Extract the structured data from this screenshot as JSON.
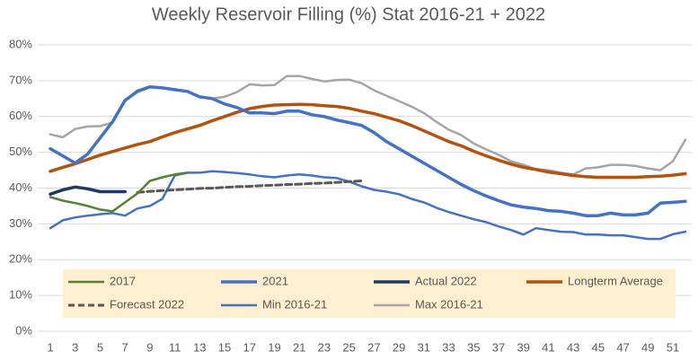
{
  "chart_data": {
    "type": "line",
    "title": "Weekly Reservoir Filling (%) Stat 2016-21 + 2022",
    "categories": [
      1,
      null,
      3,
      null,
      5,
      null,
      7,
      null,
      9,
      null,
      11,
      null,
      13,
      null,
      15,
      null,
      17,
      null,
      19,
      null,
      21,
      null,
      23,
      null,
      25,
      null,
      27,
      null,
      29,
      null,
      31,
      null,
      33,
      null,
      35,
      null,
      37,
      null,
      39,
      null,
      41,
      null,
      43,
      null,
      45,
      null,
      47,
      null,
      49,
      null,
      51,
      null
    ],
    "ylim": [
      0,
      80
    ],
    "yticks": [
      {
        "value": 0,
        "label": "0%"
      },
      {
        "value": 10,
        "label": "10%"
      },
      {
        "value": 20,
        "label": "20%"
      },
      {
        "value": 30,
        "label": "30%"
      },
      {
        "value": 40,
        "label": "40%"
      },
      {
        "value": 50,
        "label": "50%"
      },
      {
        "value": 60,
        "label": "60%"
      },
      {
        "value": 70,
        "label": "70%"
      },
      {
        "value": 80,
        "label": "80%"
      }
    ],
    "grid": true,
    "legend": "bottom",
    "series": [
      {
        "name": "2017",
        "color": "#548235",
        "values": [
          37.5,
          36.5,
          35.8,
          35,
          34,
          33.5,
          36,
          38.5,
          42,
          43,
          43.8,
          44.3,
          null,
          null,
          null,
          null,
          null,
          null,
          null,
          null,
          null,
          null,
          null,
          null,
          null,
          null,
          null,
          null,
          null,
          null,
          null,
          null,
          null,
          null,
          null,
          null,
          null,
          null,
          null,
          null,
          null,
          null,
          null,
          null,
          null,
          null,
          null,
          null,
          null,
          null,
          null,
          null
        ]
      },
      {
        "name": "2021",
        "color": "#4472c4",
        "values": [
          51,
          49,
          47,
          49.5,
          54,
          58.5,
          64.5,
          67,
          68.3,
          68,
          67.5,
          67,
          65.5,
          65,
          63.5,
          62.5,
          61,
          61,
          60.8,
          61.5,
          61.5,
          60.5,
          60,
          59,
          58.3,
          57.5,
          55.5,
          53,
          51,
          49,
          47,
          45,
          43,
          41,
          39.3,
          37.8,
          36.5,
          35.3,
          34.7,
          34.3,
          33.7,
          33.5,
          33,
          32.3,
          32.3,
          33,
          32.5,
          32.5,
          33,
          35.8,
          36,
          36.3
        ]
      },
      {
        "name": "Actual 2022",
        "color": "#1f3864",
        "values": [
          38.3,
          39.5,
          40.3,
          39.8,
          39,
          39,
          39,
          null,
          null,
          null,
          null,
          null,
          null,
          null,
          null,
          null,
          null,
          null,
          null,
          null,
          null,
          null,
          null,
          null,
          null,
          null,
          null,
          null,
          null,
          null,
          null,
          null,
          null,
          null,
          null,
          null,
          null,
          null,
          null,
          null,
          null,
          null,
          null,
          null,
          null,
          null,
          null,
          null,
          null,
          null,
          null,
          null
        ]
      },
      {
        "name": "Longterm Average",
        "color": "#b4520f",
        "values": [
          44.7,
          45.8,
          46.8,
          48,
          49.2,
          50.2,
          51.2,
          52.2,
          53,
          54.3,
          55.5,
          56.5,
          57.5,
          58.8,
          60,
          61.2,
          62.2,
          62.8,
          63.2,
          63.3,
          63.4,
          63.3,
          63,
          62.8,
          62.3,
          61.5,
          60.8,
          59.8,
          58.8,
          57.5,
          56,
          54.5,
          53,
          51.8,
          50.3,
          49,
          47.8,
          46.7,
          45.8,
          45.2,
          44.5,
          44,
          43.5,
          43.2,
          43,
          43,
          43,
          43,
          43.2,
          43.3,
          43.6,
          44
        ]
      },
      {
        "name": "Forecast 2022",
        "color": "#595959",
        "dashed": true,
        "values": [
          null,
          null,
          null,
          null,
          null,
          null,
          null,
          38.8,
          39.1,
          39.3,
          39.5,
          39.7,
          39.9,
          40,
          40.2,
          40.4,
          40.5,
          40.7,
          40.8,
          41,
          41.1,
          41.3,
          41.4,
          41.6,
          41.8,
          42,
          null,
          null,
          null,
          null,
          null,
          null,
          null,
          null,
          null,
          null,
          null,
          null,
          null,
          null,
          null,
          null,
          null,
          null,
          null,
          null,
          null,
          null,
          null,
          null,
          null,
          null
        ]
      },
      {
        "name": "Min 2016-21",
        "color": "#4472c4",
        "values": [
          28.8,
          31,
          31.8,
          32.3,
          32.7,
          33,
          32.3,
          34.3,
          35,
          37,
          43.5,
          44.3,
          44.3,
          44.7,
          44.5,
          44.2,
          43.8,
          43.3,
          43,
          43.5,
          43.8,
          43.5,
          43,
          42.8,
          41.8,
          40.5,
          39.5,
          39,
          38.3,
          37,
          36,
          34.5,
          33.3,
          32.3,
          31.3,
          30.5,
          29.3,
          28.3,
          27,
          28.8,
          28.3,
          27.8,
          27.7,
          27,
          27,
          26.8,
          26.8,
          26.3,
          25.8,
          25.8,
          27.1,
          27.8
        ]
      },
      {
        "name": "Max 2016-21",
        "color": "#a5a5a5",
        "values": [
          55,
          54.2,
          56.5,
          57.2,
          57.3,
          58.3,
          64.5,
          67.3,
          68.3,
          68,
          67.3,
          67,
          65.3,
          65,
          65.5,
          66.8,
          69,
          68.7,
          68.8,
          71.3,
          71.3,
          70.5,
          69.8,
          70.2,
          70.3,
          69.3,
          67.3,
          65.8,
          64.3,
          62.8,
          61,
          58.5,
          56.3,
          54.8,
          52.5,
          50.8,
          49.3,
          47.5,
          46.5,
          45.3,
          45,
          44.3,
          43.8,
          45.5,
          45.8,
          46.5,
          46.5,
          46.2,
          45.5,
          45,
          47.5,
          53.5
        ]
      }
    ]
  }
}
